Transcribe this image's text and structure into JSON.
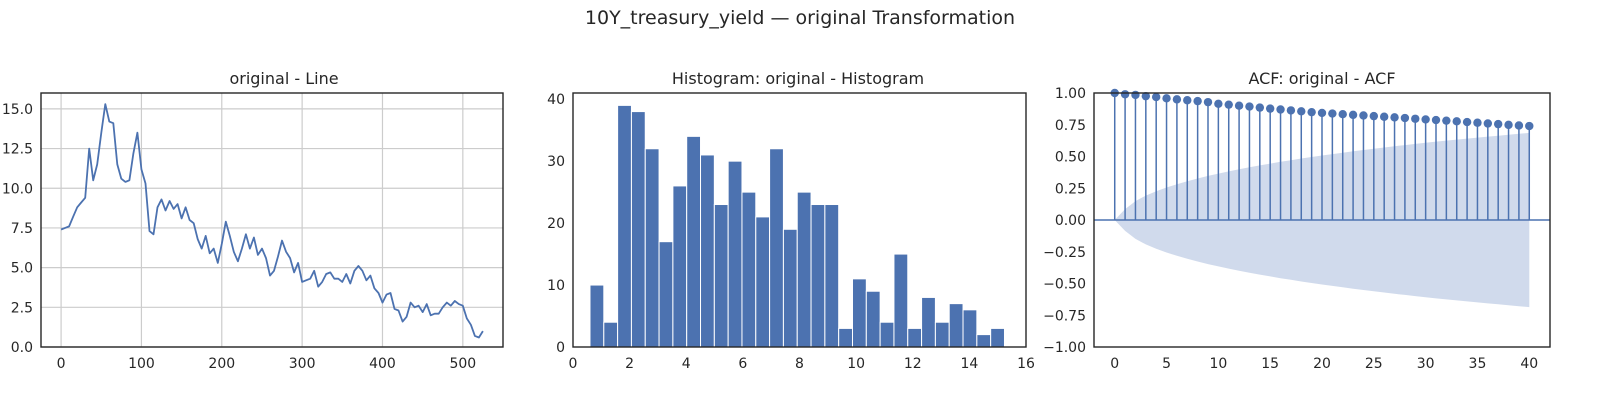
{
  "figure": {
    "suptitle": "10Y_treasury_yield — original Transformation"
  },
  "chart_data": [
    {
      "type": "line",
      "title": "original - Line",
      "xlabel": "",
      "ylabel": "",
      "xlim": [
        -25,
        550
      ],
      "ylim": [
        0,
        16
      ],
      "grid": true,
      "color": "#4c72b0",
      "xticks": [
        0,
        100,
        200,
        300,
        400,
        500
      ],
      "yticks": [
        0.0,
        2.5,
        5.0,
        7.5,
        10.0,
        12.5,
        15.0
      ],
      "yticklabels": [
        "0.0",
        "2.5",
        "5.0",
        "7.5",
        "10.0",
        "12.5",
        "15.0"
      ],
      "x": [
        0,
        5,
        10,
        15,
        20,
        25,
        30,
        35,
        40,
        45,
        50,
        55,
        60,
        65,
        70,
        75,
        80,
        85,
        90,
        95,
        100,
        105,
        110,
        115,
        120,
        125,
        130,
        135,
        140,
        145,
        150,
        155,
        160,
        165,
        170,
        175,
        180,
        185,
        190,
        195,
        200,
        205,
        210,
        215,
        220,
        225,
        230,
        235,
        240,
        245,
        250,
        255,
        260,
        265,
        270,
        275,
        280,
        285,
        290,
        295,
        300,
        305,
        310,
        315,
        320,
        325,
        330,
        335,
        340,
        345,
        350,
        355,
        360,
        365,
        370,
        375,
        380,
        385,
        390,
        395,
        400,
        405,
        410,
        415,
        420,
        425,
        430,
        435,
        440,
        445,
        450,
        455,
        460,
        465,
        470,
        475,
        480,
        485,
        490,
        495,
        500,
        505,
        510,
        515,
        520,
        525
      ],
      "y": [
        7.4,
        7.5,
        7.6,
        8.2,
        8.8,
        9.1,
        9.4,
        12.5,
        10.5,
        11.5,
        13.5,
        15.3,
        14.2,
        14.1,
        11.5,
        10.6,
        10.4,
        10.5,
        12.2,
        13.5,
        11.2,
        10.3,
        7.3,
        7.1,
        8.8,
        9.3,
        8.6,
        9.2,
        8.7,
        9.0,
        8.1,
        8.8,
        8.0,
        7.8,
        6.8,
        6.2,
        7.0,
        5.9,
        6.2,
        5.3,
        6.5,
        7.9,
        7.0,
        6.0,
        5.4,
        6.2,
        7.1,
        6.2,
        6.9,
        5.8,
        6.2,
        5.6,
        4.5,
        4.8,
        5.7,
        6.7,
        6.0,
        5.6,
        4.7,
        5.3,
        4.1,
        4.2,
        4.3,
        4.8,
        3.8,
        4.1,
        4.6,
        4.7,
        4.3,
        4.3,
        4.1,
        4.6,
        4.0,
        4.8,
        5.1,
        4.8,
        4.2,
        4.5,
        3.7,
        3.4,
        2.8,
        3.3,
        3.4,
        2.4,
        2.3,
        1.6,
        1.9,
        2.8,
        2.5,
        2.6,
        2.2,
        2.7,
        2.0,
        2.1,
        2.1,
        2.5,
        2.8,
        2.6,
        2.9,
        2.7,
        2.6,
        1.8,
        1.4,
        0.7,
        0.6,
        1.0
      ]
    },
    {
      "type": "bar",
      "title": "Histogram: original - Histogram",
      "xlabel": "",
      "ylabel": "",
      "xlim": [
        0,
        16
      ],
      "ylim": [
        0,
        41
      ],
      "grid": false,
      "color": "#4c72b0",
      "xticks": [
        0,
        2,
        4,
        6,
        8,
        10,
        12,
        14,
        16
      ],
      "yticks": [
        0,
        10,
        20,
        30,
        40
      ],
      "bins_start": 0.6,
      "bin_width": 0.488,
      "counts": [
        10,
        4,
        39,
        38,
        32,
        17,
        26,
        34,
        31,
        23,
        30,
        25,
        21,
        32,
        19,
        25,
        23,
        23,
        3,
        11,
        9,
        4,
        15,
        3,
        8,
        4,
        7,
        6,
        2,
        3
      ]
    },
    {
      "type": "stem",
      "title": "ACF: original - ACF",
      "xlabel": "",
      "ylabel": "",
      "xlim": [
        -2,
        42
      ],
      "ylim": [
        -1,
        1
      ],
      "grid": false,
      "color": "#4c72b0",
      "band_color": "#b0c1e0",
      "xticks": [
        0,
        5,
        10,
        15,
        20,
        25,
        30,
        35,
        40
      ],
      "yticks": [
        -1.0,
        -0.75,
        -0.5,
        -0.25,
        0.0,
        0.25,
        0.5,
        0.75,
        1.0
      ],
      "yticklabels": [
        "−1.00",
        "−0.75",
        "−0.50",
        "−0.25",
        "0.00",
        "0.25",
        "0.50",
        "0.75",
        "1.00"
      ],
      "lags": [
        0,
        1,
        2,
        3,
        4,
        5,
        6,
        7,
        8,
        9,
        10,
        11,
        12,
        13,
        14,
        15,
        16,
        17,
        18,
        19,
        20,
        21,
        22,
        23,
        24,
        25,
        26,
        27,
        28,
        29,
        30,
        31,
        32,
        33,
        34,
        35,
        36,
        37,
        38,
        39,
        40
      ],
      "acf": [
        1.0,
        0.99,
        0.985,
        0.975,
        0.968,
        0.958,
        0.95,
        0.943,
        0.936,
        0.928,
        0.915,
        0.908,
        0.9,
        0.893,
        0.885,
        0.877,
        0.87,
        0.863,
        0.856,
        0.849,
        0.843,
        0.838,
        0.833,
        0.828,
        0.823,
        0.818,
        0.813,
        0.808,
        0.803,
        0.797,
        0.792,
        0.787,
        0.782,
        0.777,
        0.771,
        0.766,
        0.76,
        0.755,
        0.749,
        0.744,
        0.74
      ],
      "conf_upper": [
        0.0,
        0.086,
        0.149,
        0.192,
        0.226,
        0.256,
        0.282,
        0.305,
        0.327,
        0.347,
        0.365,
        0.383,
        0.399,
        0.415,
        0.43,
        0.444,
        0.458,
        0.471,
        0.484,
        0.496,
        0.508,
        0.519,
        0.53,
        0.541,
        0.551,
        0.561,
        0.571,
        0.581,
        0.59,
        0.599,
        0.608,
        0.617,
        0.625,
        0.633,
        0.641,
        0.649,
        0.657,
        0.664,
        0.672,
        0.679,
        0.686
      ]
    }
  ]
}
